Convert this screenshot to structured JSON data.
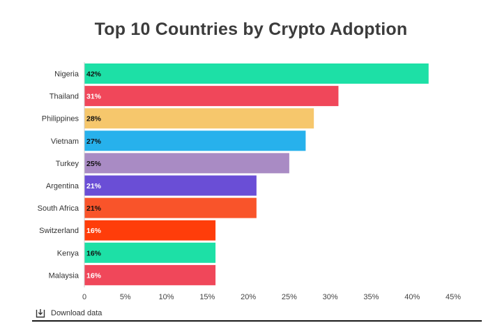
{
  "title": "Top 10 Countries by Crypto Adoption",
  "download_label": "Download data",
  "chart_data": {
    "type": "bar",
    "orientation": "horizontal",
    "title": "Top 10 Countries by Crypto Adoption",
    "categories": [
      "Nigeria",
      "Thailand",
      "Philippines",
      "Vietnam",
      "Turkey",
      "Argentina",
      "South Africa",
      "Switzerland",
      "Kenya",
      "Malaysia"
    ],
    "values": [
      42,
      31,
      28,
      27,
      25,
      21,
      21,
      16,
      16,
      16
    ],
    "value_labels": [
      "42%",
      "31%",
      "28%",
      "27%",
      "25%",
      "21%",
      "21%",
      "16%",
      "16%",
      "16%"
    ],
    "colors": [
      "#1de0a6",
      "#f0475a",
      "#f6c76c",
      "#27b1ec",
      "#a98bc4",
      "#6a4ed6",
      "#f9542a",
      "#ff3d0a",
      "#1de0a6",
      "#f0475a"
    ],
    "value_label_colors": [
      "#111111",
      "#ffffff",
      "#111111",
      "#111111",
      "#111111",
      "#ffffff",
      "#111111",
      "#ffffff",
      "#111111",
      "#ffffff"
    ],
    "xticks": [
      "0",
      "5%",
      "10%",
      "15%",
      "20%",
      "25%",
      "30%",
      "35%",
      "40%",
      "45%"
    ],
    "xlim": [
      0,
      45
    ],
    "grid": false,
    "legend": "none"
  }
}
